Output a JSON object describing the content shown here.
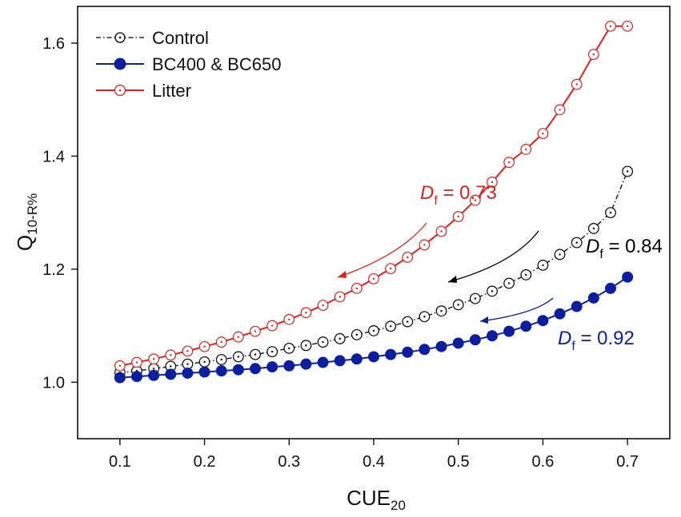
{
  "chart_data": {
    "type": "line",
    "title": "",
    "xlabel": "CUE",
    "xlabel_sub": "20",
    "ylabel": "Q",
    "ylabel_sub": "10-R%",
    "xlim": [
      0.05,
      0.75
    ],
    "ylim": [
      0.9,
      1.665
    ],
    "xticks": [
      0.1,
      0.2,
      0.3,
      0.4,
      0.5,
      0.6,
      0.7
    ],
    "xtick_labels": [
      "0.1",
      "0.2",
      "0.3",
      "0.4",
      "0.5",
      "0.6",
      "0.7"
    ],
    "yticks": [
      1.0,
      1.2,
      1.4,
      1.6
    ],
    "ytick_labels": [
      "1.0",
      "1.2",
      "1.4",
      "1.6"
    ],
    "grid": false,
    "legend_position": "top-left",
    "x": [
      0.1,
      0.12,
      0.14,
      0.16,
      0.18,
      0.2,
      0.22,
      0.24,
      0.26,
      0.28,
      0.3,
      0.32,
      0.34,
      0.36,
      0.38,
      0.4,
      0.42,
      0.44,
      0.46,
      0.48,
      0.5,
      0.52,
      0.54,
      0.56,
      0.58,
      0.6,
      0.62,
      0.64,
      0.66,
      0.68,
      0.7
    ],
    "series": [
      {
        "name": "Control",
        "color": "#000000",
        "line_style": "dash-dot",
        "marker": "open-circle-dot",
        "values": [
          1.017,
          1.02,
          1.024,
          1.028,
          1.032,
          1.036,
          1.04,
          1.045,
          1.049,
          1.054,
          1.06,
          1.065,
          1.071,
          1.077,
          1.084,
          1.091,
          1.099,
          1.107,
          1.116,
          1.126,
          1.137,
          1.148,
          1.161,
          1.175,
          1.19,
          1.207,
          1.226,
          1.247,
          1.272,
          1.3,
          1.373
        ]
      },
      {
        "name": "BC400 & BC650",
        "color": "#0b1f9e",
        "line_style": "solid",
        "marker": "filled-circle",
        "values": [
          1.008,
          1.01,
          1.012,
          1.014,
          1.016,
          1.018,
          1.02,
          1.022,
          1.024,
          1.027,
          1.029,
          1.032,
          1.035,
          1.038,
          1.041,
          1.045,
          1.049,
          1.053,
          1.058,
          1.063,
          1.069,
          1.075,
          1.082,
          1.09,
          1.099,
          1.109,
          1.121,
          1.134,
          1.149,
          1.166,
          1.186
        ]
      },
      {
        "name": "Litter",
        "color": "#e0201d",
        "line_style": "solid",
        "marker": "open-circle-dot",
        "values": [
          1.029,
          1.035,
          1.041,
          1.048,
          1.055,
          1.063,
          1.071,
          1.08,
          1.09,
          1.1,
          1.111,
          1.123,
          1.136,
          1.151,
          1.166,
          1.183,
          1.201,
          1.221,
          1.243,
          1.267,
          1.293,
          1.322,
          1.354,
          1.389,
          1.412,
          1.44,
          1.482,
          1.527,
          1.58,
          1.63,
          1.63
        ]
      }
    ],
    "annotations": [
      {
        "prefix": "D",
        "sub": "f",
        "text": " = 0.73",
        "color": "#e0201d",
        "series": "Litter"
      },
      {
        "prefix": "D",
        "sub": "f",
        "text": " = 0.84",
        "color": "#000000",
        "series": "Control"
      },
      {
        "prefix": "D",
        "sub": "f",
        "text": " = 0.92",
        "color": "#0b1f9e",
        "series": "BC400 & BC650"
      }
    ]
  }
}
